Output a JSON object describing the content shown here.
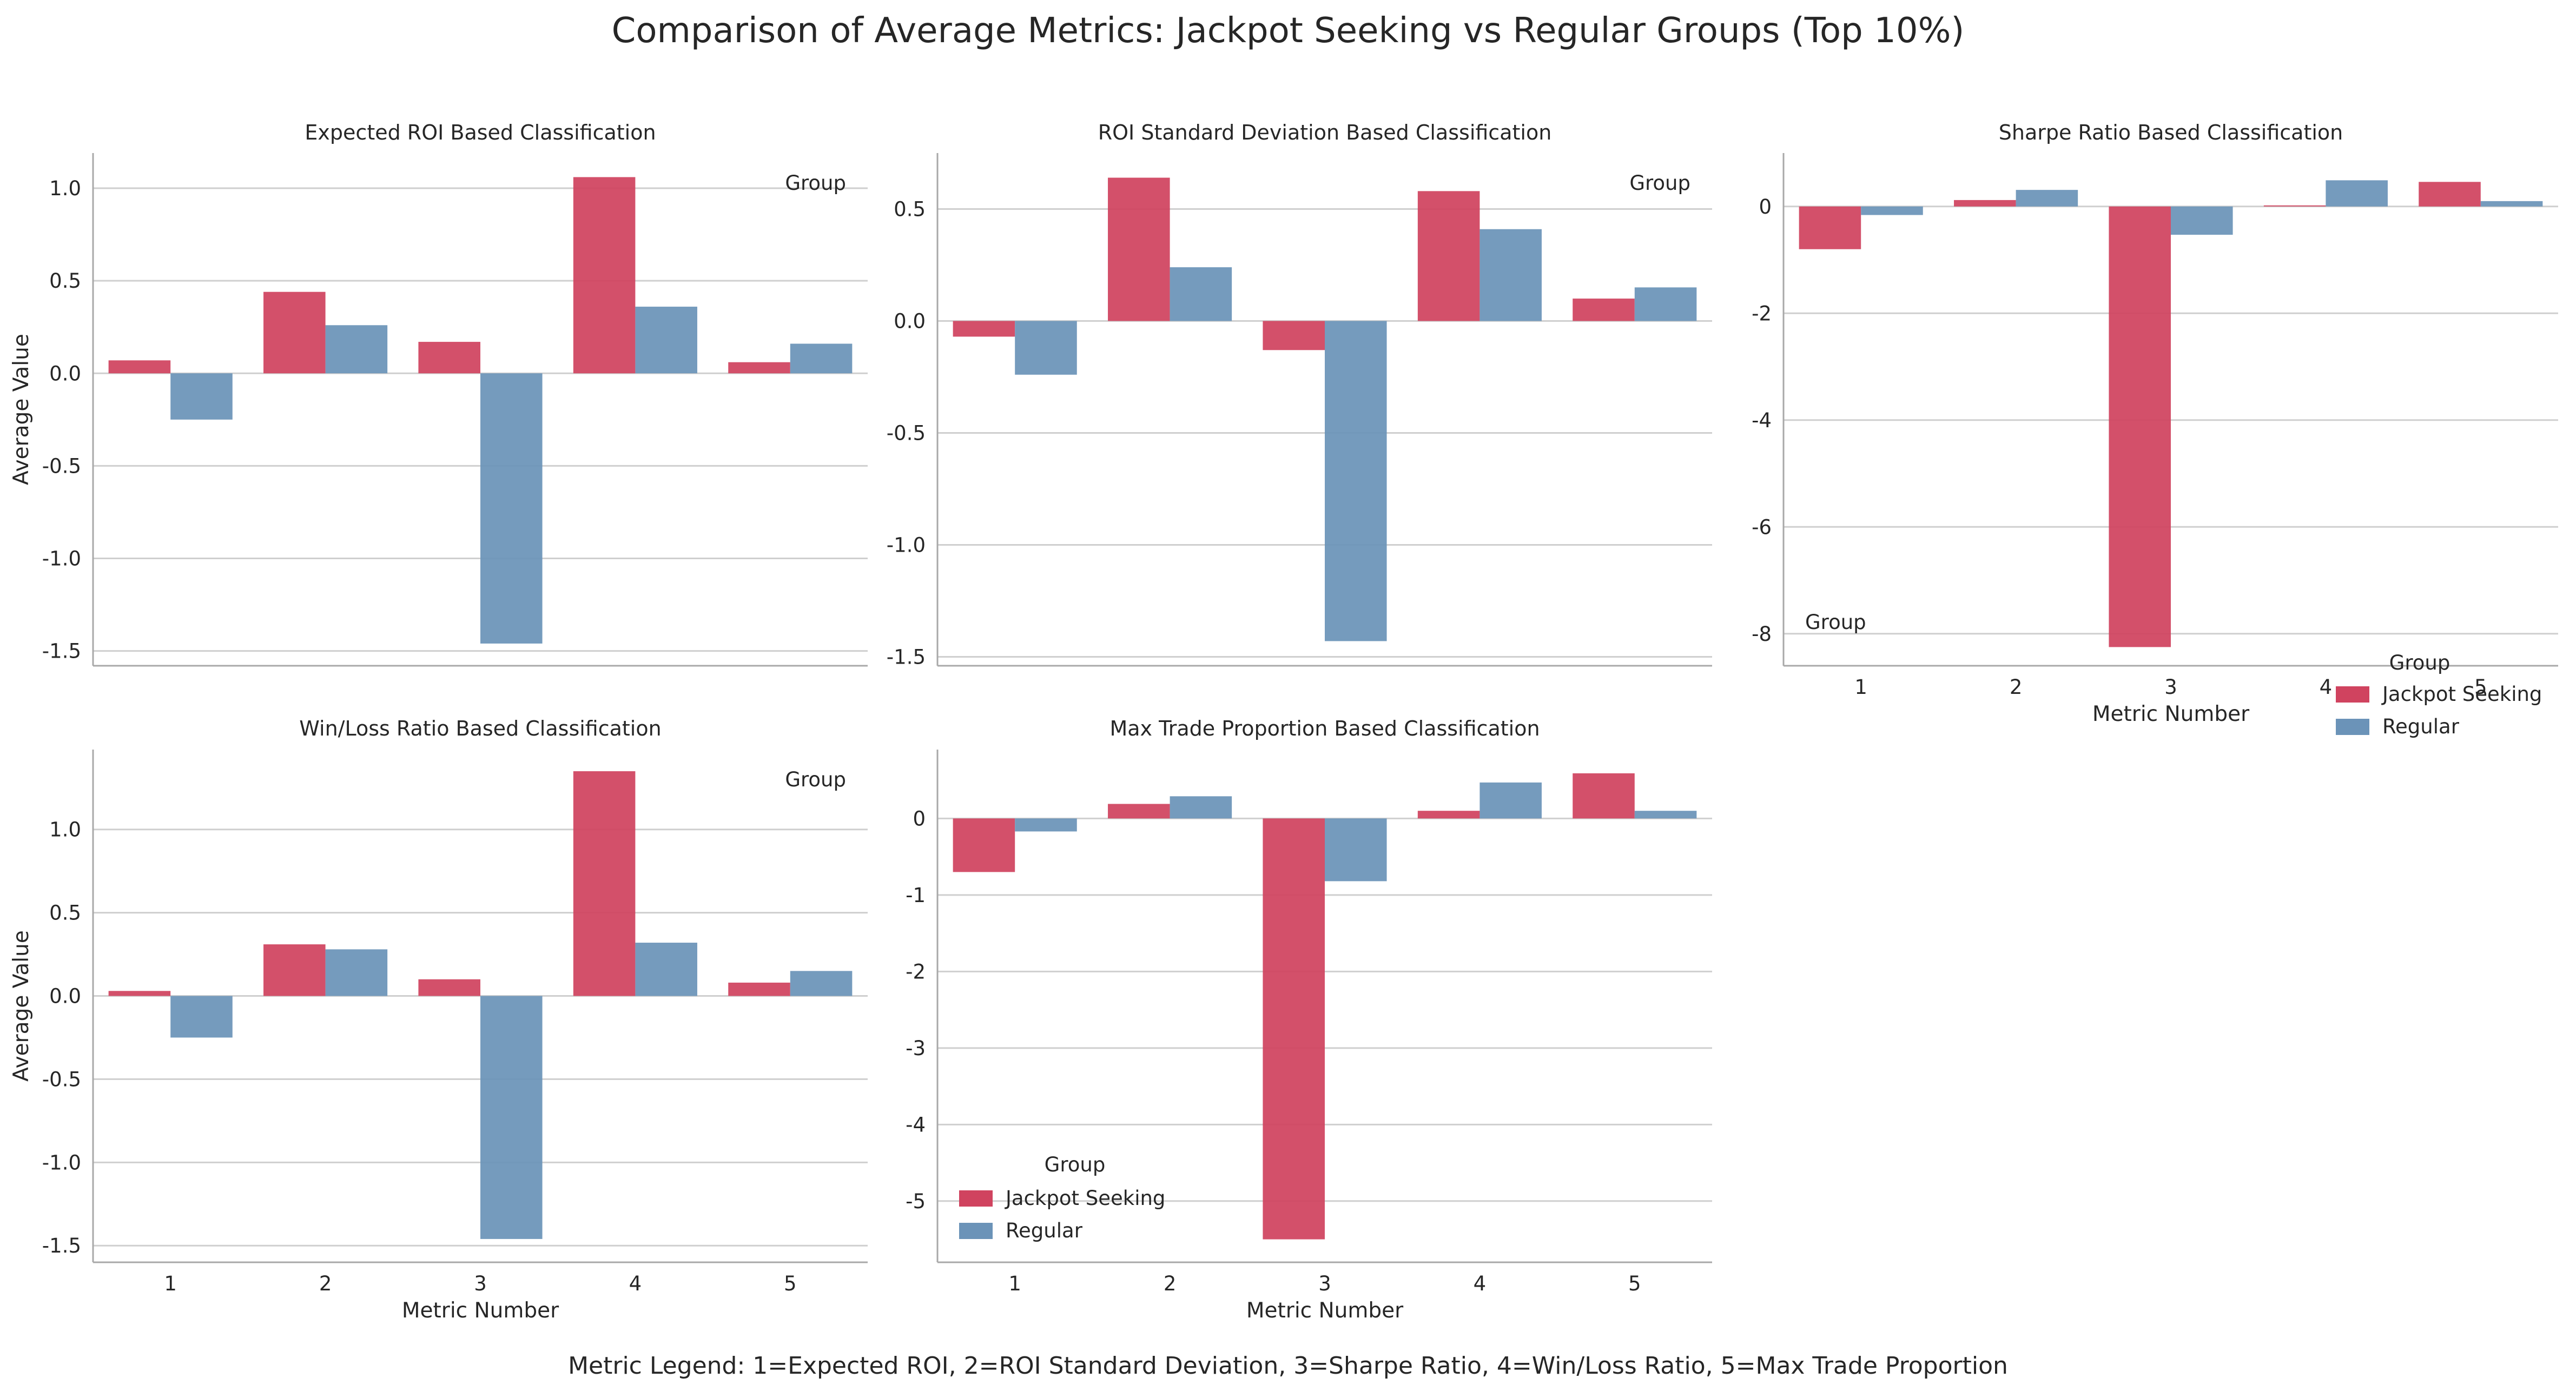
{
  "figure": {
    "title": "Comparison of Average Metrics: Jackpot Seeking vs Regular Groups (Top 10%)",
    "footer": "Metric Legend: 1=Expected ROI, 2=ROI Standard Deviation, 3=Sharpe Ratio, 4=Win/Loss Ratio, 5=Max Trade Proportion"
  },
  "colors": {
    "jackpot": "#d0435f",
    "regular": "#6b93b8",
    "grid": "#cfcfcf",
    "spine": "#a8a8a8"
  },
  "chart_data": [
    {
      "type": "bar",
      "title": "Expected ROI Based Classification",
      "categories": [
        "1",
        "2",
        "3",
        "4",
        "5"
      ],
      "series": [
        {
          "name": "Jackpot Seeking",
          "values": [
            0.07,
            0.44,
            0.17,
            1.06,
            0.06
          ]
        },
        {
          "name": "Regular",
          "values": [
            -0.25,
            0.26,
            -1.46,
            0.36,
            0.16
          ]
        }
      ],
      "xlabel": "",
      "ylabel": "Average Value",
      "ylim": [
        -1.58,
        1.19
      ],
      "yticks": [
        1.0,
        0.5,
        0.0,
        -0.5,
        -1.0,
        -1.5
      ],
      "ytick_labels": [
        "1.0",
        "0.5",
        "0.0",
        "-0.5",
        "-1.0",
        "-1.5"
      ],
      "show_xticks": false,
      "legend": {
        "title": "Group",
        "items": [],
        "position": "top-right"
      }
    },
    {
      "type": "bar",
      "title": "ROI Standard Deviation Based Classification",
      "categories": [
        "1",
        "2",
        "3",
        "4",
        "5"
      ],
      "series": [
        {
          "name": "Jackpot Seeking",
          "values": [
            -0.07,
            0.64,
            -0.13,
            0.58,
            0.1
          ]
        },
        {
          "name": "Regular",
          "values": [
            -0.24,
            0.24,
            -1.43,
            0.41,
            0.15
          ]
        }
      ],
      "xlabel": "",
      "ylabel": "",
      "ylim": [
        -1.54,
        0.75
      ],
      "yticks": [
        0.5,
        0.0,
        -0.5,
        -1.0,
        -1.5
      ],
      "ytick_labels": [
        "0.5",
        "0.0",
        "-0.5",
        "-1.0",
        "-1.5"
      ],
      "show_xticks": false,
      "legend": {
        "title": "Group",
        "items": [],
        "position": "top-right"
      }
    },
    {
      "type": "bar",
      "title": "Sharpe Ratio Based Classification",
      "categories": [
        "1",
        "2",
        "3",
        "4",
        "5"
      ],
      "series": [
        {
          "name": "Jackpot Seeking",
          "values": [
            -0.8,
            0.12,
            -8.25,
            0.02,
            0.46
          ]
        },
        {
          "name": "Regular",
          "values": [
            -0.16,
            0.31,
            -0.53,
            0.49,
            0.1
          ]
        }
      ],
      "xlabel": "Metric Number",
      "ylabel": "",
      "ylim": [
        -8.6,
        1.0
      ],
      "yticks": [
        0,
        -2,
        -4,
        -6,
        -8
      ],
      "ytick_labels": [
        "0",
        "-2",
        "-4",
        "-6",
        "-8"
      ],
      "show_xticks": true,
      "legend": {
        "title": "Group",
        "items": [
          "Jackpot Seeking",
          "Regular"
        ],
        "position": "bottom-right outside"
      },
      "stray_label": {
        "text": "Group",
        "position": "bottom-left"
      }
    },
    {
      "type": "bar",
      "title": "Win/Loss Ratio Based Classification",
      "categories": [
        "1",
        "2",
        "3",
        "4",
        "5"
      ],
      "series": [
        {
          "name": "Jackpot Seeking",
          "values": [
            0.03,
            0.31,
            0.1,
            1.35,
            0.08
          ]
        },
        {
          "name": "Regular",
          "values": [
            -0.25,
            0.28,
            -1.46,
            0.32,
            0.15
          ]
        }
      ],
      "xlabel": "Metric Number",
      "ylabel": "Average Value",
      "ylim": [
        -1.6,
        1.48
      ],
      "yticks": [
        1.0,
        0.5,
        0.0,
        -0.5,
        -1.0,
        -1.5
      ],
      "ytick_labels": [
        "1.0",
        "0.5",
        "0.0",
        "-0.5",
        "-1.0",
        "-1.5"
      ],
      "show_xticks": true,
      "legend": {
        "title": "Group",
        "items": [],
        "position": "top-right"
      }
    },
    {
      "type": "bar",
      "title": "Max Trade Proportion Based Classification",
      "categories": [
        "1",
        "2",
        "3",
        "4",
        "5"
      ],
      "series": [
        {
          "name": "Jackpot Seeking",
          "values": [
            -0.7,
            0.19,
            -5.5,
            0.1,
            0.59
          ]
        },
        {
          "name": "Regular",
          "values": [
            -0.17,
            0.29,
            -0.82,
            0.47,
            0.1
          ]
        }
      ],
      "xlabel": "Metric Number",
      "ylabel": "",
      "ylim": [
        -5.8,
        0.9
      ],
      "yticks": [
        0,
        -1,
        -2,
        -3,
        -4,
        -5
      ],
      "ytick_labels": [
        "0",
        "-1",
        "-2",
        "-3",
        "-4",
        "-5"
      ],
      "show_xticks": true,
      "legend": {
        "title": "Group",
        "items": [
          "Jackpot Seeking",
          "Regular"
        ],
        "position": "bottom-left"
      }
    }
  ]
}
